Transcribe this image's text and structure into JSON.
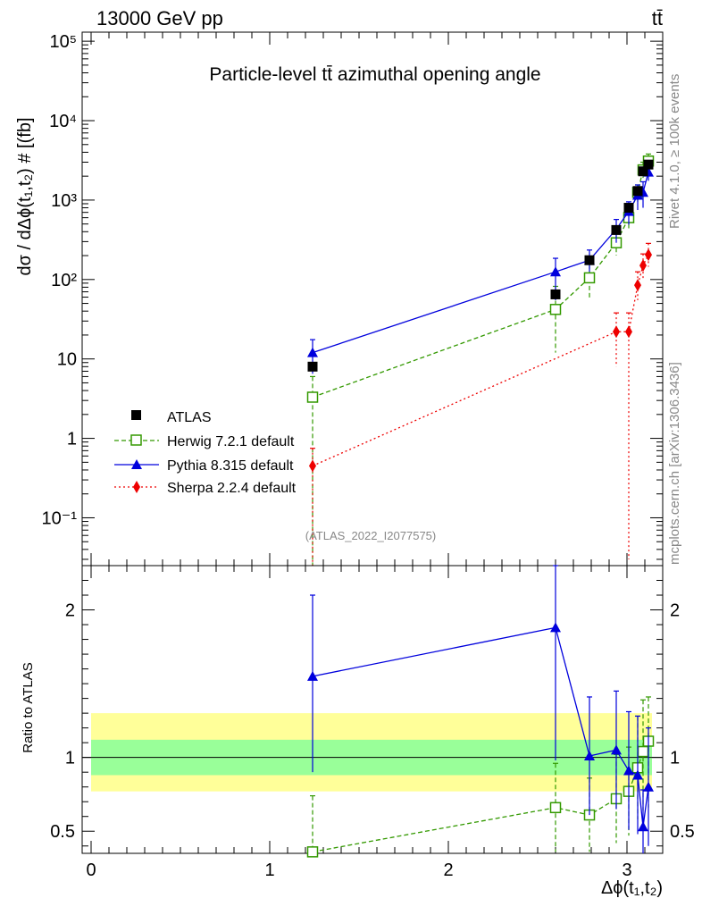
{
  "header": {
    "energy_label": "13000 GeV pp",
    "process_label": "tt̄"
  },
  "side": {
    "rivet_label": "Rivet 4.1.0, ≥ 100k events",
    "mcplots_label": "mcplots.cern.ch [arXiv:1306.3436]"
  },
  "chart_data": [
    {
      "type": "line",
      "title": "Particle-level tt̄ azimuthal opening angle",
      "ylabel": "dσ / dΔϕ(t1,t2) # [(fb]",
      "ylabel_display": "dσ / dΔϕ(t₁,t₂) # [(fb]",
      "xlabel": "Δϕ(t1,t2)",
      "xlabel_display": "Δϕ(t₁,t₂)",
      "yscale": "log",
      "xlim": [
        -0.05,
        3.2
      ],
      "ylim": [
        0.025,
        130000
      ],
      "ytick_labels": [
        "10⁻¹",
        "1",
        "10",
        "10²",
        "10³",
        "10⁴",
        "10⁵"
      ],
      "watermark": "(ATLAS_2022_I2077575)",
      "x": [
        1.24,
        2.6,
        2.79,
        2.94,
        3.01,
        3.06,
        3.09,
        3.12
      ],
      "series": [
        {
          "name": "ATLAS",
          "color": "#000000",
          "marker": "filled-square",
          "values": [
            8,
            65,
            175,
            420,
            800,
            1300,
            2300,
            2800
          ],
          "band_rel": [
            0.24,
            0.24,
            0.24,
            0.24,
            0.24,
            0.24,
            0.24,
            0.24
          ]
        },
        {
          "name": "Herwig 7.2.1 default",
          "color": "#339900",
          "marker": "open-square",
          "dash": "5,3",
          "values": [
            3.3,
            42,
            105,
            290,
            600,
            1250,
            2400,
            3100
          ],
          "err_lo": [
            3.28,
            30,
            48,
            90,
            160,
            300,
            500,
            500
          ],
          "err_hi": [
            2.7,
            40,
            50,
            90,
            160,
            300,
            600,
            700
          ]
        },
        {
          "name": "Pythia 8.315 default",
          "color": "#0000dd",
          "marker": "filled-triangle",
          "values": [
            12,
            125,
            175,
            430,
            720,
            1150,
            1250,
            2250
          ],
          "err_lo": [
            5.5,
            70,
            50,
            140,
            230,
            400,
            450,
            500
          ],
          "err_hi": [
            5.5,
            60,
            60,
            140,
            230,
            400,
            450,
            500
          ]
        },
        {
          "name": "Sherpa 2.2.4 default",
          "color": "#ee0000",
          "marker": "filled-diamond",
          "dash": "2,3",
          "values": [
            0.45,
            null,
            null,
            22,
            22,
            85,
            150,
            205
          ],
          "err_lo": [
            0.44,
            null,
            null,
            14,
            21.97,
            30,
            50,
            60
          ],
          "err_hi": [
            0.3,
            null,
            null,
            16,
            16,
            40,
            60,
            80
          ]
        }
      ]
    },
    {
      "type": "line",
      "title": "",
      "ylabel": "Ratio to ATLAS",
      "xlabel": "Δϕ(t1,t2)",
      "xlim": [
        -0.05,
        3.2
      ],
      "ylim": [
        0.35,
        2.3
      ],
      "ytick_labels": [
        "0.5",
        "1",
        "2"
      ],
      "xtick_labels": [
        "0",
        "1",
        "2",
        "3"
      ],
      "x": [
        1.24,
        2.6,
        2.79,
        2.94,
        3.01,
        3.06,
        3.09,
        3.12
      ],
      "band_inner": {
        "lo": 0.88,
        "hi": 1.12,
        "color": "#99ff99"
      },
      "band_outer": {
        "lo": 0.77,
        "hi": 1.3,
        "color": "#ffff99"
      },
      "series": [
        {
          "name": "Herwig 7.2.1 default",
          "color": "#339900",
          "values": [
            0.36,
            0.66,
            0.61,
            0.72,
            0.77,
            0.93,
            1.04,
            1.11
          ],
          "err_lo": [
            0.02,
            0.3,
            0.25,
            0.3,
            0.3,
            0.35,
            0.4,
            0.45
          ],
          "err_hi": [
            0.38,
            0.3,
            0.25,
            0.3,
            0.3,
            0.35,
            0.35,
            0.3
          ]
        },
        {
          "name": "Pythia 8.315 default",
          "color": "#0000dd",
          "values": [
            1.55,
            1.88,
            1.01,
            1.05,
            0.91,
            0.88,
            0.53,
            0.8
          ],
          "err_lo": [
            0.65,
            0.9,
            0.4,
            0.4,
            0.4,
            0.4,
            0.2,
            0.4
          ],
          "err_hi": [
            0.55,
            0.8,
            0.4,
            0.4,
            0.4,
            0.4,
            0.25,
            0.4
          ]
        }
      ]
    }
  ]
}
